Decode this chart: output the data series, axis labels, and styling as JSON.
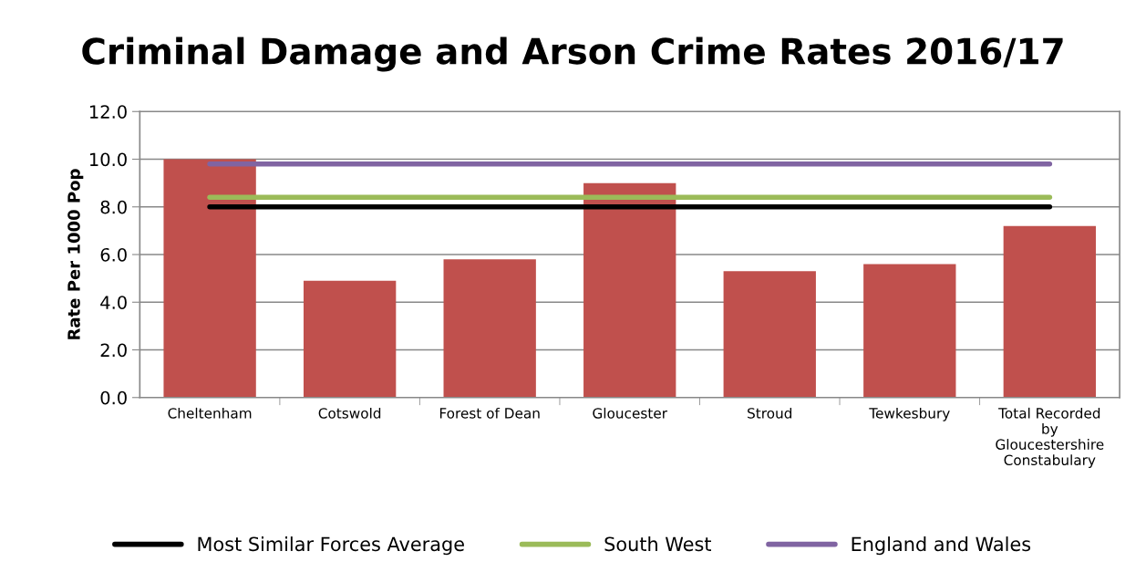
{
  "chart_data": {
    "type": "bar",
    "title": "Criminal Damage and Arson Crime Rates 2016/17",
    "ylabel": "Rate Per 1000 Pop",
    "categories": [
      "Cheltenham",
      "Cotswold",
      "Forest of Dean",
      "Gloucester",
      "Stroud",
      "Tewkesbury",
      "Total Recorded\nby\nGloucestershire\nConstabulary"
    ],
    "series": [
      {
        "color": "#c0504d",
        "values": [
          10.0,
          4.9,
          5.8,
          9.0,
          5.3,
          5.6,
          7.2
        ]
      },
      {
        "type": "line",
        "name": "Most Similar Forces Average",
        "color": "#000000",
        "values": [
          8.0,
          8.0,
          8.0,
          8.0,
          8.0,
          8.0,
          8.0
        ]
      },
      {
        "type": "line",
        "name": "South West",
        "color": "#9bbb59",
        "values": [
          8.4,
          8.4,
          8.4,
          8.4,
          8.4,
          8.4,
          8.4
        ]
      },
      {
        "type": "line",
        "name": "England and Wales",
        "color": "#8064a2",
        "values": [
          9.8,
          9.8,
          9.8,
          9.8,
          9.8,
          9.8,
          9.8
        ]
      }
    ],
    "ylim": [
      0,
      12
    ],
    "yticks": [
      {
        "value": 0,
        "label": "0.0"
      },
      {
        "value": 2,
        "label": "2.0"
      },
      {
        "value": 4,
        "label": "4.0"
      },
      {
        "value": 6,
        "label": "6.0"
      },
      {
        "value": 8,
        "label": "8.0"
      },
      {
        "value": 10,
        "label": "10.0"
      },
      {
        "value": 12,
        "label": "12.0"
      }
    ],
    "grid": "y",
    "legend": "bottom",
    "marker": "none",
    "line_style": "solid"
  }
}
